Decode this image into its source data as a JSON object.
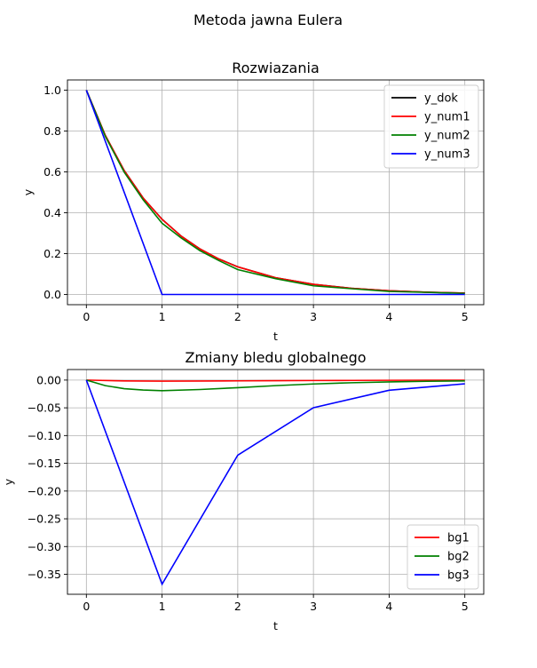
{
  "figure": {
    "suptitle": "Metoda jawna Eulera"
  },
  "colors": {
    "black": "#000000",
    "red": "#ff0000",
    "green": "#008000",
    "blue": "#0000ff",
    "grid": "#b0b0b0"
  },
  "chart_data": [
    {
      "type": "line",
      "title": "Rozwiazania",
      "xlabel": "t",
      "ylabel": "y",
      "xlim": [
        -0.25,
        5.25
      ],
      "ylim": [
        -0.05,
        1.05
      ],
      "xticks": [
        0,
        1,
        2,
        3,
        4,
        5
      ],
      "yticks": [
        0.0,
        0.2,
        0.4,
        0.6,
        0.8,
        1.0
      ],
      "xtick_labels": [
        "0",
        "1",
        "2",
        "3",
        "4",
        "5"
      ],
      "ytick_labels": [
        "0.0",
        "0.2",
        "0.4",
        "0.6",
        "0.8",
        "1.0"
      ],
      "grid": true,
      "legend_position": "top-right",
      "series": [
        {
          "name": "y_dok",
          "color": "#000000",
          "x": [
            0,
            0.25,
            0.5,
            0.75,
            1,
            1.25,
            1.5,
            1.75,
            2,
            2.5,
            3,
            3.5,
            4,
            4.5,
            5
          ],
          "y": [
            1.0,
            0.7788,
            0.6065,
            0.4724,
            0.3679,
            0.2865,
            0.2231,
            0.1738,
            0.1353,
            0.0821,
            0.0498,
            0.0302,
            0.0183,
            0.0111,
            0.0067
          ]
        },
        {
          "name": "y_num1",
          "color": "#ff0000",
          "x": [
            0,
            0.25,
            0.5,
            0.75,
            1,
            1.25,
            1.5,
            1.75,
            2,
            2.5,
            3,
            3.5,
            4,
            4.5,
            5
          ],
          "y": [
            1.0,
            0.7786,
            0.6062,
            0.472,
            0.3675,
            0.2861,
            0.2228,
            0.1735,
            0.135,
            0.0819,
            0.0496,
            0.0301,
            0.0182,
            0.011,
            0.0067
          ]
        },
        {
          "name": "y_num2",
          "color": "#008000",
          "x": [
            0,
            0.25,
            0.5,
            0.75,
            1,
            1.25,
            1.5,
            1.75,
            2,
            2.5,
            3,
            3.5,
            4,
            4.5,
            5
          ],
          "y": [
            1.0,
            0.7738,
            0.5987,
            0.4633,
            0.3487,
            0.2774,
            0.2146,
            0.1661,
            0.1216,
            0.0774,
            0.0424,
            0.0282,
            0.0148,
            0.0103,
            0.0052
          ]
        },
        {
          "name": "y_num3",
          "color": "#0000ff",
          "x": [
            0,
            1,
            2,
            3,
            4,
            5
          ],
          "y": [
            1.0,
            0.0,
            0.0,
            0.0,
            0.0,
            0.0
          ]
        }
      ]
    },
    {
      "type": "line",
      "title": "Zmiany bledu globalnego",
      "xlabel": "t",
      "ylabel": "y",
      "xlim": [
        -0.25,
        5.25
      ],
      "ylim": [
        -0.386,
        0.019
      ],
      "xticks": [
        0,
        1,
        2,
        3,
        4,
        5
      ],
      "yticks": [
        0.0,
        -0.05,
        -0.1,
        -0.15,
        -0.2,
        -0.25,
        -0.3,
        -0.35
      ],
      "xtick_labels": [
        "0",
        "1",
        "2",
        "3",
        "4",
        "5"
      ],
      "ytick_labels": [
        "0.00",
        "−0.05",
        "−0.10",
        "−0.15",
        "−0.20",
        "−0.25",
        "−0.30",
        "−0.35"
      ],
      "grid": true,
      "legend_position": "lower-right",
      "series": [
        {
          "name": "bg1",
          "color": "#ff0000",
          "x": [
            0,
            0.5,
            1,
            1.5,
            2,
            2.5,
            3,
            3.5,
            4,
            4.5,
            5
          ],
          "y": [
            0.0,
            -0.0015,
            -0.0019,
            -0.0017,
            -0.0014,
            -0.0011,
            -0.0008,
            -0.0006,
            -0.0004,
            -0.0003,
            -0.0002
          ]
        },
        {
          "name": "bg2",
          "color": "#008000",
          "x": [
            0,
            0.25,
            0.5,
            0.75,
            1,
            1.5,
            2,
            2.5,
            3,
            3.5,
            4,
            4.5,
            5
          ],
          "y": [
            0.0,
            -0.01,
            -0.0155,
            -0.018,
            -0.0192,
            -0.017,
            -0.0137,
            -0.01,
            -0.007,
            -0.0048,
            -0.0033,
            -0.0022,
            -0.0015
          ]
        },
        {
          "name": "bg3",
          "color": "#0000ff",
          "x": [
            0,
            1,
            2,
            3,
            4,
            5
          ],
          "y": [
            0.0,
            -0.3679,
            -0.1353,
            -0.0498,
            -0.0183,
            -0.0067
          ]
        }
      ]
    }
  ]
}
